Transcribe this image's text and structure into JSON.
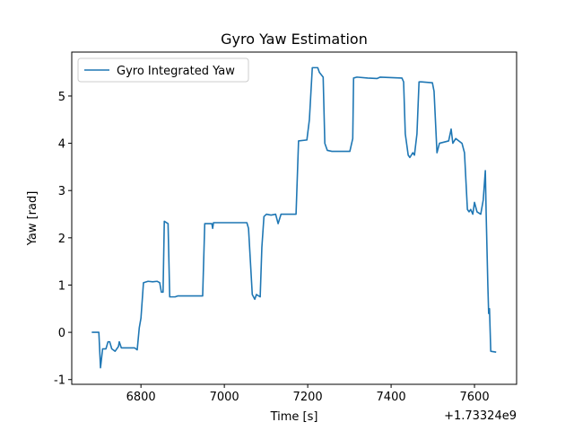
{
  "chart_data": {
    "type": "line",
    "title": "Gyro Yaw Estimation",
    "x_label": "Time [s]",
    "y_label": "Yaw [rad]",
    "x_offset_label": "+1.73324e9",
    "legend": "upper left",
    "grid": false,
    "xlim": [
      6634,
      7701
    ],
    "ylim": [
      -1.1,
      5.93
    ],
    "xticks": [
      6800,
      7000,
      7200,
      7400,
      7600
    ],
    "yticks": [
      -1,
      0,
      1,
      2,
      3,
      4,
      5
    ],
    "x": [
      6682,
      6699,
      6703,
      6708,
      6716,
      6721,
      6725,
      6730,
      6738,
      6746,
      6748,
      6753,
      6785,
      6791,
      6796,
      6800,
      6806,
      6817,
      6828,
      6839,
      6845,
      6849,
      6853,
      6856,
      6865,
      6869,
      6882,
      6888,
      6948,
      6953,
      6970,
      6972,
      6974,
      7054,
      7058,
      7067,
      7073,
      7077,
      7086,
      7090,
      7095,
      7101,
      7112,
      7123,
      7129,
      7136,
      7172,
      7178,
      7198,
      7204,
      7211,
      7224,
      7228,
      7237,
      7241,
      7247,
      7258,
      7301,
      7308,
      7310,
      7318,
      7344,
      7366,
      7374,
      7426,
      7430,
      7434,
      7441,
      7445,
      7452,
      7456,
      7462,
      7467,
      7473,
      7499,
      7503,
      7510,
      7516,
      7538,
      7544,
      7548,
      7555,
      7570,
      7576,
      7583,
      7587,
      7591,
      7596,
      7600,
      7606,
      7615,
      7621,
      7626,
      7628,
      7632,
      7634,
      7636,
      7639,
      7652
    ],
    "series": [
      {
        "name": "Gyro Integrated Yaw",
        "color": "#1f77b4",
        "values": [
          0,
          0,
          -0.75,
          -0.35,
          -0.35,
          -0.2,
          -0.2,
          -0.35,
          -0.4,
          -0.3,
          -0.2,
          -0.33,
          -0.33,
          -0.37,
          0.1,
          0.3,
          1.05,
          1.08,
          1.07,
          1.08,
          1.05,
          0.85,
          0.85,
          2.35,
          2.3,
          0.75,
          0.75,
          0.77,
          0.77,
          2.3,
          2.3,
          2.2,
          2.32,
          2.32,
          2.2,
          0.8,
          0.7,
          0.8,
          0.75,
          1.8,
          2.45,
          2.5,
          2.48,
          2.5,
          2.3,
          2.5,
          2.5,
          4.05,
          4.07,
          4.5,
          5.6,
          5.6,
          5.5,
          5.4,
          4.0,
          3.85,
          3.83,
          3.83,
          4.1,
          5.38,
          5.4,
          5.38,
          5.37,
          5.4,
          5.38,
          5.3,
          4.2,
          3.75,
          3.7,
          3.8,
          3.75,
          4.2,
          5.3,
          5.3,
          5.28,
          5.1,
          3.8,
          4.0,
          4.05,
          4.3,
          4.0,
          4.1,
          4.0,
          3.8,
          2.6,
          2.55,
          2.6,
          2.5,
          2.75,
          2.55,
          2.5,
          2.8,
          3.42,
          2.5,
          1.0,
          0.4,
          0.5,
          -0.4,
          -0.42
        ]
      }
    ]
  }
}
